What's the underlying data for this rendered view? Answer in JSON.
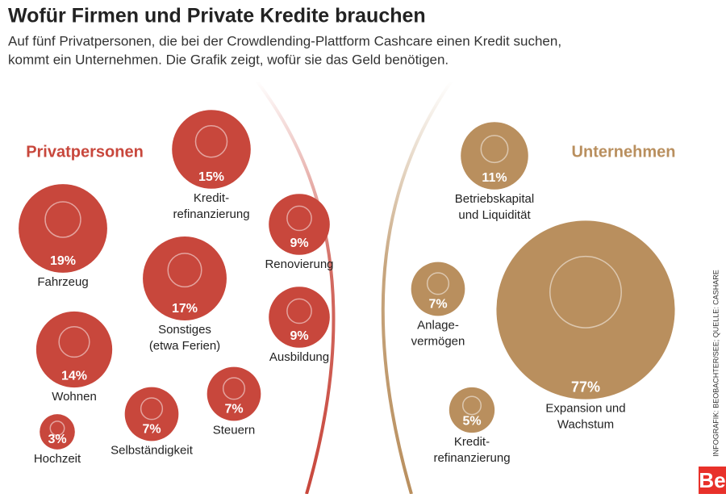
{
  "header": {
    "title": "Wofür Firmen und Private Kredite brauchen",
    "subtitle": [
      "Auf fünf Privatpersonen, die bei der Crowdlending-Plattform Cashcare einen Kredit suchen,",
      "kommt ein Unternehmen. Die Grafik zeigt, wofür sie das Geld benötigen."
    ]
  },
  "groups": [
    {
      "name": "Privatpersonen",
      "color": "#c8473c",
      "items": [
        {
          "label": [
            "Kredit-",
            "refinanzierung"
          ],
          "value": 15,
          "value_label": "15%"
        },
        {
          "label": [
            "Fahrzeug"
          ],
          "value": 19,
          "value_label": "19%"
        },
        {
          "label": [
            "Renovierung"
          ],
          "value": 9,
          "value_label": "9%"
        },
        {
          "label": [
            "Sonstiges",
            "(etwa Ferien)"
          ],
          "value": 17,
          "value_label": "17%"
        },
        {
          "label": [
            "Ausbildung"
          ],
          "value": 9,
          "value_label": "9%"
        },
        {
          "label": [
            "Wohnen"
          ],
          "value": 14,
          "value_label": "14%"
        },
        {
          "label": [
            "Steuern"
          ],
          "value": 7,
          "value_label": "7%"
        },
        {
          "label": [
            "Selbständigkeit"
          ],
          "value": 7,
          "value_label": "7%"
        },
        {
          "label": [
            "Hochzeit"
          ],
          "value": 3,
          "value_label": "3%"
        }
      ]
    },
    {
      "name": "Unternehmen",
      "color": "#b98f5e",
      "items": [
        {
          "label": [
            "Betriebskapital",
            "und Liquidität"
          ],
          "value": 11,
          "value_label": "11%"
        },
        {
          "label": [
            "Anlage-",
            "vermögen"
          ],
          "value": 7,
          "value_label": "7%"
        },
        {
          "label": [
            "Expansion und",
            "Wachstum"
          ],
          "value": 77,
          "value_label": "77%"
        },
        {
          "label": [
            "Kredit-",
            "refinanzierung"
          ],
          "value": 5,
          "value_label": "5%"
        }
      ]
    }
  ],
  "credit": "INFOGRAFIK: BEOBACHTER/SEE; QUELLE: CASHARE",
  "logo": "Be"
}
